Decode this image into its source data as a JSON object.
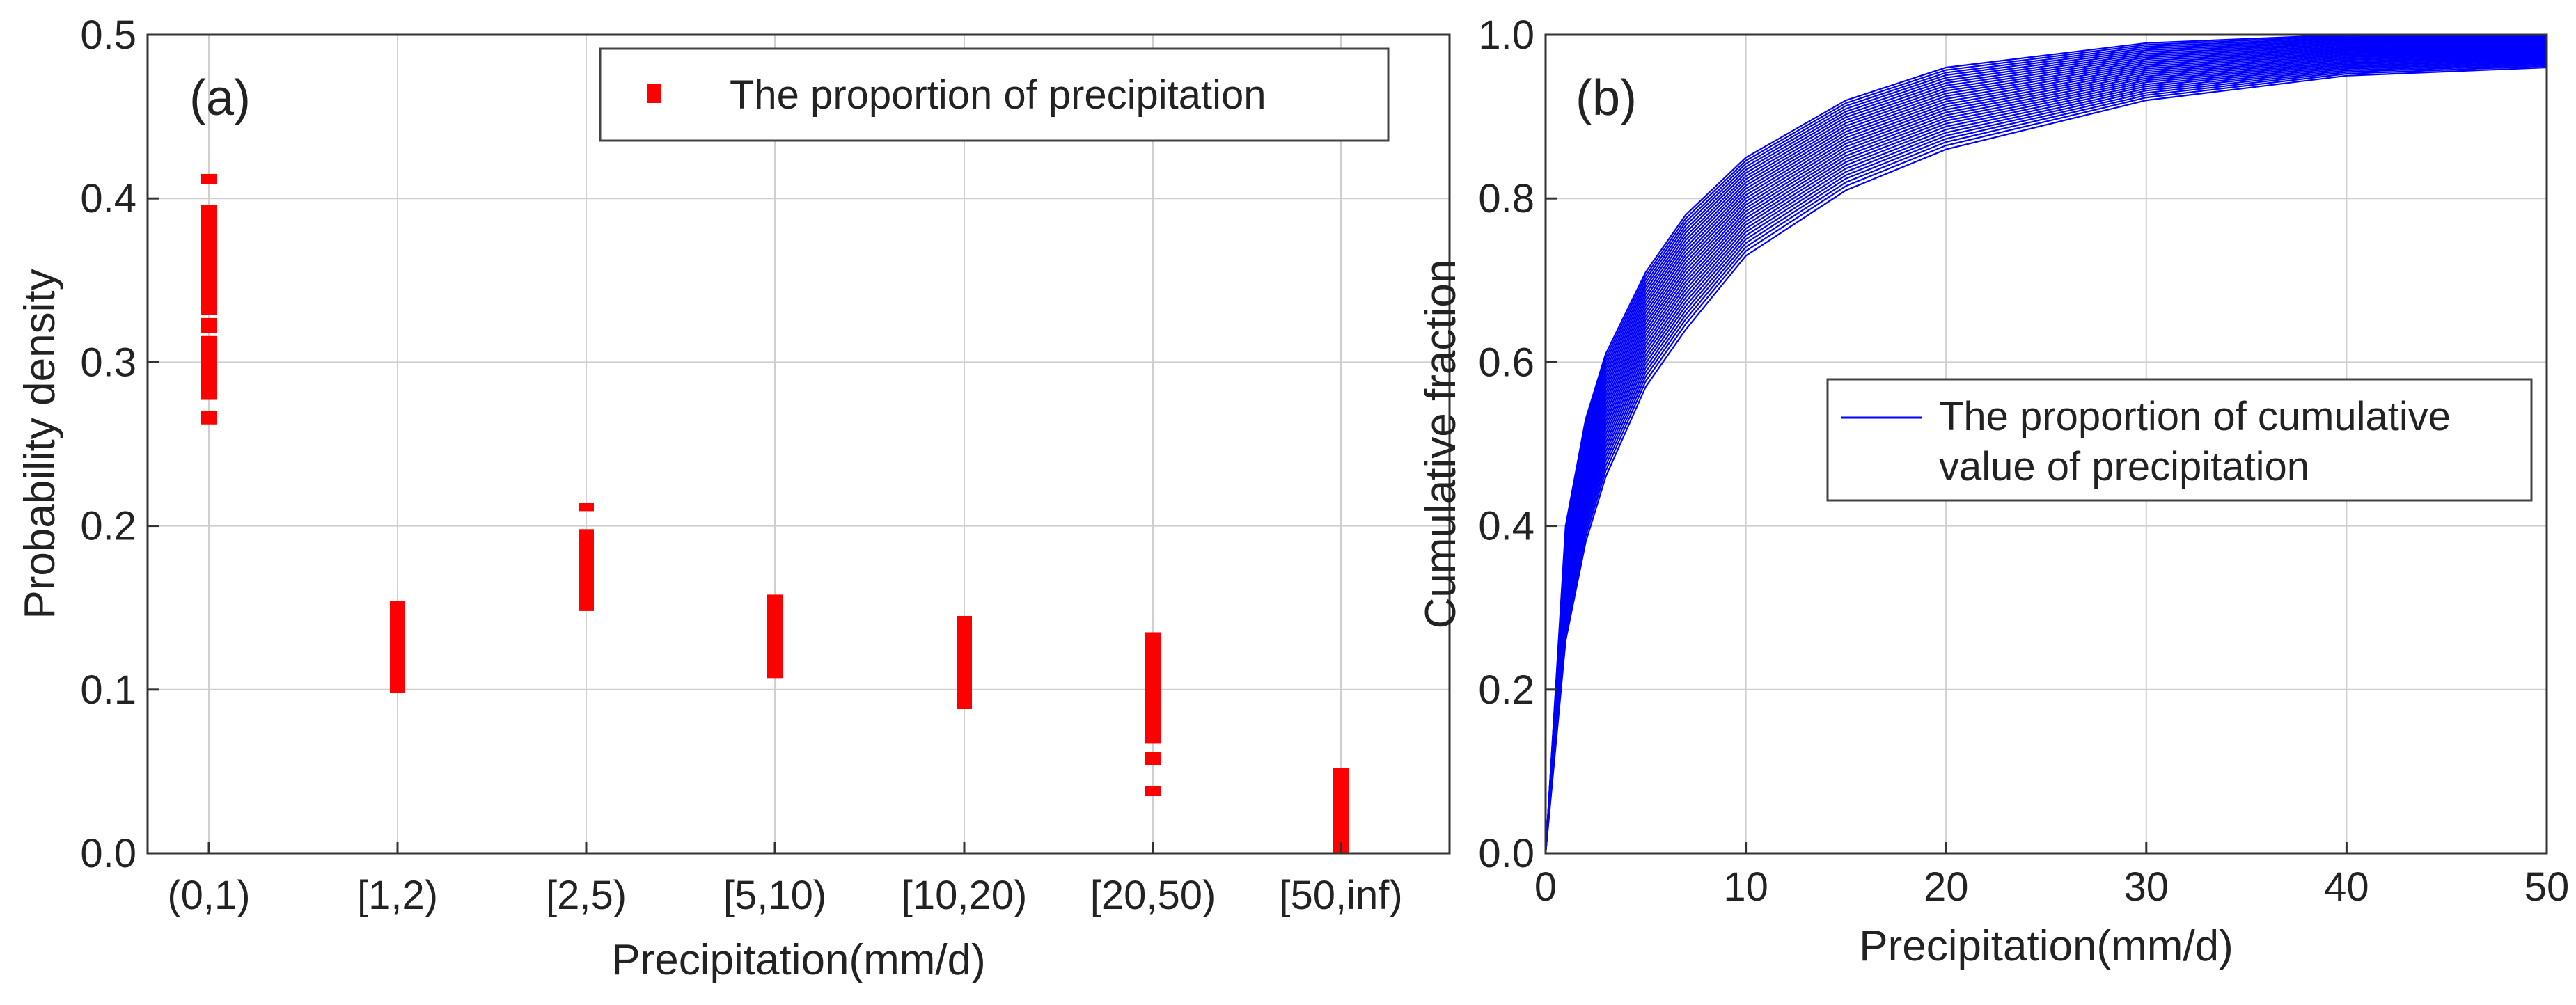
{
  "chart_data": [
    {
      "type": "scatter",
      "panel_label": "(a)",
      "xlabel": "Precipitation(mm/d)",
      "ylabel": "Probability density",
      "categories": [
        "(0,1)",
        "[1,2)",
        "[2,5)",
        "[5,10)",
        "[10,20)",
        "[20,50)",
        "[50,inf)"
      ],
      "ylim": [
        0,
        0.5
      ],
      "yticks": [
        "0.0",
        "0.1",
        "0.2",
        "0.3",
        "0.4",
        "0.5"
      ],
      "grid": true,
      "legend": {
        "label": "The proportion of precipitation",
        "placement": "top-right"
      },
      "color": "#ff0000",
      "series": [
        {
          "name": "The proportion of precipitation",
          "ranges": [
            {
              "category": "(0,1)",
              "segments": [
                [
                  0.262,
                  0.27
                ],
                [
                  0.277,
                  0.316
                ],
                [
                  0.318,
                  0.327
                ],
                [
                  0.329,
                  0.396
                ],
                [
                  0.409,
                  0.415
                ]
              ]
            },
            {
              "category": "[1,2)",
              "segments": [
                [
                  0.098,
                  0.154
                ]
              ]
            },
            {
              "category": "[2,5)",
              "segments": [
                [
                  0.148,
                  0.198
                ],
                [
                  0.209,
                  0.214
                ]
              ]
            },
            {
              "category": "[5,10)",
              "segments": [
                [
                  0.107,
                  0.158
                ]
              ]
            },
            {
              "category": "[10,20)",
              "segments": [
                [
                  0.088,
                  0.145
                ]
              ]
            },
            {
              "category": "[20,50)",
              "segments": [
                [
                  0.035,
                  0.041
                ],
                [
                  0.054,
                  0.062
                ],
                [
                  0.067,
                  0.135
                ]
              ]
            },
            {
              "category": "[50,inf)",
              "segments": [
                [
                  0.0,
                  0.052
                ]
              ]
            }
          ]
        }
      ]
    },
    {
      "type": "line",
      "panel_label": "(b)",
      "xlabel": "Precipitation(mm/d)",
      "ylabel": "Cumulative fraction",
      "xlim": [
        0,
        50
      ],
      "ylim": [
        0,
        1.0
      ],
      "xticks": [
        "0",
        "10",
        "20",
        "30",
        "40",
        "50"
      ],
      "yticks": [
        "0.0",
        "0.2",
        "0.4",
        "0.6",
        "0.8",
        "1.0"
      ],
      "grid": true,
      "legend": {
        "label_line1": "The proportion of cumulative",
        "label_line2": "value of precipitation",
        "placement": "center-right"
      },
      "color": "#0000ff",
      "x": [
        0,
        1,
        2,
        3,
        5,
        7,
        10,
        15,
        20,
        30,
        40,
        50
      ],
      "series_envelope": [
        {
          "name": "upper",
          "values": [
            0,
            0.4,
            0.53,
            0.61,
            0.71,
            0.78,
            0.85,
            0.92,
            0.96,
            0.99,
            1.0,
            1.0
          ]
        },
        {
          "name": "lower",
          "values": [
            0,
            0.26,
            0.38,
            0.46,
            0.57,
            0.64,
            0.73,
            0.81,
            0.86,
            0.92,
            0.95,
            0.96
          ]
        }
      ],
      "series_count": 30
    }
  ]
}
